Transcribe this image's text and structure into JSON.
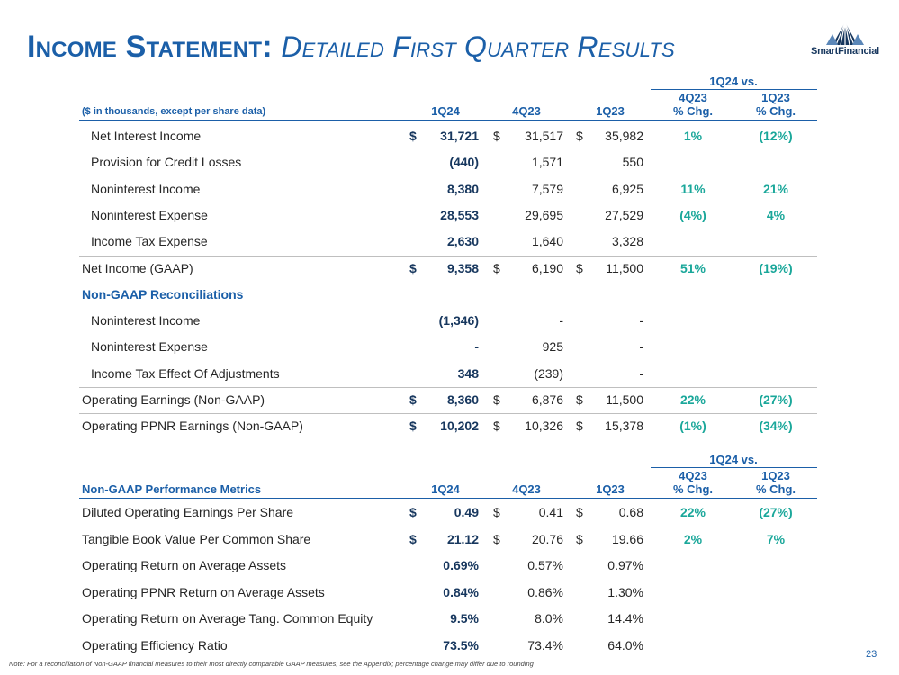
{
  "title": {
    "main": "Income Statement:",
    "sub": "Detailed First Quarter Results"
  },
  "logo": {
    "name": "SmartFinancial"
  },
  "income": {
    "group_header": "1Q24 vs.",
    "note_header": "($ in thousands, except per share data)",
    "col1": "1Q24",
    "col2": "4Q23",
    "col3": "1Q23",
    "chg1": [
      "4Q23",
      "% Chg."
    ],
    "chg2": [
      "1Q23",
      "% Chg."
    ],
    "rows": [
      {
        "label": "Net Interest Income",
        "d1": "$",
        "v1": "31,721",
        "d2": "$",
        "v2": "31,517",
        "d3": "$",
        "v3": "35,982",
        "p1": "1%",
        "p2": "(12%)"
      },
      {
        "label": "Provision for Credit Losses",
        "d1": "",
        "v1": "(440)",
        "d2": "",
        "v2": "1,571",
        "d3": "",
        "v3": "550",
        "p1": "",
        "p2": ""
      },
      {
        "label": "Noninterest Income",
        "d1": "",
        "v1": "8,380",
        "d2": "",
        "v2": "7,579",
        "d3": "",
        "v3": "6,925",
        "p1": "11%",
        "p2": "21%"
      },
      {
        "label": "Noninterest Expense",
        "d1": "",
        "v1": "28,553",
        "d2": "",
        "v2": "29,695",
        "d3": "",
        "v3": "27,529",
        "p1": "(4%)",
        "p2": "4%"
      },
      {
        "label": "Income Tax Expense",
        "d1": "",
        "v1": "2,630",
        "d2": "",
        "v2": "1,640",
        "d3": "",
        "v3": "3,328",
        "p1": "",
        "p2": ""
      },
      {
        "label": "Net Income (GAAP)",
        "d1": "$",
        "v1": "9,358",
        "d2": "$",
        "v2": "6,190",
        "d3": "$",
        "v3": "11,500",
        "p1": "51%",
        "p2": "(19%)"
      },
      {
        "label": "Non-GAAP Reconciliations",
        "d1": "",
        "v1": "",
        "d2": "",
        "v2": "",
        "d3": "",
        "v3": "",
        "p1": "",
        "p2": ""
      },
      {
        "label": "Noninterest Income",
        "d1": "",
        "v1": "(1,346)",
        "d2": "",
        "v2": "-",
        "d3": "",
        "v3": "-",
        "p1": "",
        "p2": ""
      },
      {
        "label": "Noninterest Expense",
        "d1": "",
        "v1": "-",
        "d2": "",
        "v2": "925",
        "d3": "",
        "v3": "-",
        "p1": "",
        "p2": ""
      },
      {
        "label": "Income Tax Effect Of Adjustments",
        "d1": "",
        "v1": "348",
        "d2": "",
        "v2": "(239)",
        "d3": "",
        "v3": "-",
        "p1": "",
        "p2": ""
      },
      {
        "label": "Operating Earnings (Non-GAAP)",
        "d1": "$",
        "v1": "8,360",
        "d2": "$",
        "v2": "6,876",
        "d3": "$",
        "v3": "11,500",
        "p1": "22%",
        "p2": "(27%)"
      },
      {
        "label": "Operating PPNR Earnings (Non-GAAP)",
        "d1": "$",
        "v1": "10,202",
        "d2": "$",
        "v2": "10,326",
        "d3": "$",
        "v3": "15,378",
        "p1": "(1%)",
        "p2": "(34%)"
      }
    ]
  },
  "metrics": {
    "group_header": "1Q24 vs.",
    "section_header": "Non-GAAP Performance Metrics",
    "col1": "1Q24",
    "col2": "4Q23",
    "col3": "1Q23",
    "chg1": [
      "4Q23",
      "% Chg."
    ],
    "chg2": [
      "1Q23",
      "% Chg."
    ],
    "rows": [
      {
        "label": "Diluted Operating Earnings Per Share",
        "d1": "$",
        "v1": "0.49",
        "d2": "$",
        "v2": "0.41",
        "d3": "$",
        "v3": "0.68",
        "p1": "22%",
        "p2": "(27%)"
      },
      {
        "label": "Tangible Book Value Per Common Share",
        "d1": "$",
        "v1": "21.12",
        "d2": "$",
        "v2": "20.76",
        "d3": "$",
        "v3": "19.66",
        "p1": "2%",
        "p2": "7%"
      },
      {
        "label": "Operating Return on Average Assets",
        "d1": "",
        "v1": "0.69%",
        "d2": "",
        "v2": "0.57%",
        "d3": "",
        "v3": "0.97%",
        "p1": "",
        "p2": ""
      },
      {
        "label": "Operating PPNR Return on Average Assets",
        "d1": "",
        "v1": "0.84%",
        "d2": "",
        "v2": "0.86%",
        "d3": "",
        "v3": "1.30%",
        "p1": "",
        "p2": ""
      },
      {
        "label": "Operating Return on Average Tang. Common Equity",
        "d1": "",
        "v1": "9.5%",
        "d2": "",
        "v2": "8.0%",
        "d3": "",
        "v3": "14.4%",
        "p1": "",
        "p2": ""
      },
      {
        "label": "Operating Efficiency Ratio",
        "d1": "",
        "v1": "73.5%",
        "d2": "",
        "v2": "73.4%",
        "d3": "",
        "v3": "64.0%",
        "p1": "",
        "p2": ""
      }
    ]
  },
  "footer": {
    "note": "Note: For a reconciliation of Non-GAAP financial measures to their most directly comparable GAAP measures, see the Appendix; percentage change may differ due to rounding",
    "page": "23"
  },
  "colors": {
    "title_blue": "#1b5fa8",
    "teal": "#1aa79a",
    "navy": "#17375e"
  }
}
